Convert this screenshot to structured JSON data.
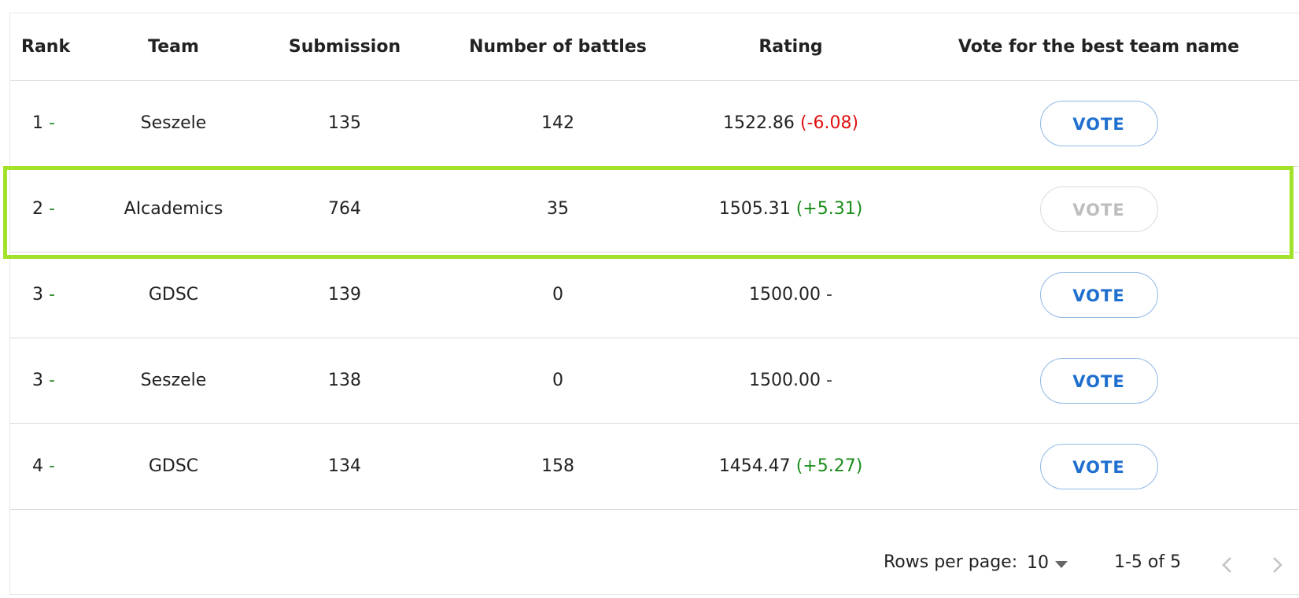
{
  "table": {
    "headers": {
      "rank": "Rank",
      "team": "Team",
      "submission": "Submission",
      "battles": "Number of battles",
      "rating": "Rating",
      "vote": "Vote for the best team name"
    },
    "rows": [
      {
        "rank": "1",
        "dash": "-",
        "team": "Seszele",
        "submission": "135",
        "battles": "142",
        "rating": "1522.86",
        "delta": "(-6.08)",
        "vote": "VOTE"
      },
      {
        "rank": "2",
        "dash": "-",
        "team": "AIcademics",
        "submission": "764",
        "battles": "35",
        "rating": "1505.31",
        "delta": "(+5.31)",
        "vote": "VOTE"
      },
      {
        "rank": "3",
        "dash": "-",
        "team": "GDSC",
        "submission": "139",
        "battles": "0",
        "rating": "1500.00",
        "delta": "-",
        "vote": "VOTE"
      },
      {
        "rank": "3",
        "dash": "-",
        "team": "Seszele",
        "submission": "138",
        "battles": "0",
        "rating": "1500.00",
        "delta": "-",
        "vote": "VOTE"
      },
      {
        "rank": "4",
        "dash": "-",
        "team": "GDSC",
        "submission": "134",
        "battles": "158",
        "rating": "1454.47",
        "delta": "(+5.27)",
        "vote": "VOTE"
      }
    ]
  },
  "pagination": {
    "rows_per_page_label": "Rows per page:",
    "rows_per_page_value": "10",
    "range_text": "1-5 of 5"
  },
  "colors": {
    "accent": "#1f6fcf",
    "highlight": "#a3e22a",
    "negative": "#e01010",
    "positive": "#1a8c1a"
  }
}
